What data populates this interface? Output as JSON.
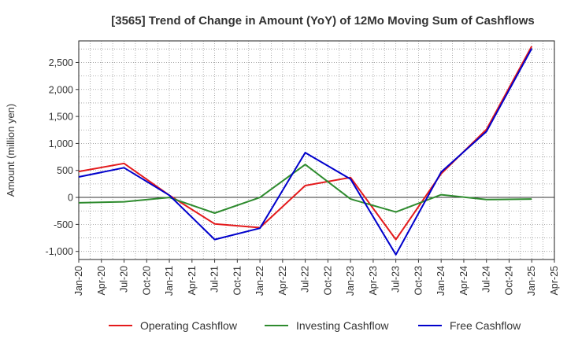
{
  "chart_data": {
    "type": "line",
    "title": "[3565]  Trend of Change in Amount (YoY) of 12Mo Moving Sum of Cashflows",
    "xlabel": "",
    "ylabel": "Amount (million yen)",
    "ylim": [
      -1150,
      2900
    ],
    "yticks": [
      -1000,
      -500,
      0,
      500,
      1000,
      1500,
      2000,
      2500
    ],
    "ytick_labels": [
      "-1,000",
      "-500",
      "0",
      "500",
      "1,000",
      "1,500",
      "2,000",
      "2,500"
    ],
    "x_tick_labels": [
      "Jan-20",
      "Apr-20",
      "Jul-20",
      "Oct-20",
      "Jan-21",
      "Apr-21",
      "Jul-21",
      "Oct-21",
      "Jan-22",
      "Apr-22",
      "Jul-22",
      "Oct-22",
      "Jan-23",
      "Apr-23",
      "Jul-23",
      "Oct-23",
      "Jan-24",
      "Apr-24",
      "Jul-24",
      "Oct-24",
      "Jan-25",
      "Apr-25"
    ],
    "x": [
      "Jan-20",
      "Jul-20",
      "Jan-21",
      "Jul-21",
      "Jan-22",
      "Jul-22",
      "Jan-23",
      "Jul-23",
      "Jan-24",
      "Jul-24",
      "Jan-25"
    ],
    "x_index": [
      0,
      2,
      4,
      6,
      8,
      10,
      12,
      14,
      16,
      18,
      20
    ],
    "series": [
      {
        "name": "Operating Cashflow",
        "color": "#e41a1c",
        "values": [
          480,
          630,
          40,
          -490,
          -560,
          220,
          370,
          -780,
          440,
          1260,
          2800
        ]
      },
      {
        "name": "Investing Cashflow",
        "color": "#2e8b2e",
        "values": [
          -100,
          -80,
          0,
          -290,
          0,
          610,
          -30,
          -270,
          50,
          -40,
          -30
        ]
      },
      {
        "name": "Free Cashflow",
        "color": "#0000cc",
        "values": [
          380,
          550,
          40,
          -780,
          -570,
          830,
          340,
          -1060,
          470,
          1220,
          2760
        ]
      }
    ],
    "grid": true,
    "legend_position": "bottom"
  }
}
